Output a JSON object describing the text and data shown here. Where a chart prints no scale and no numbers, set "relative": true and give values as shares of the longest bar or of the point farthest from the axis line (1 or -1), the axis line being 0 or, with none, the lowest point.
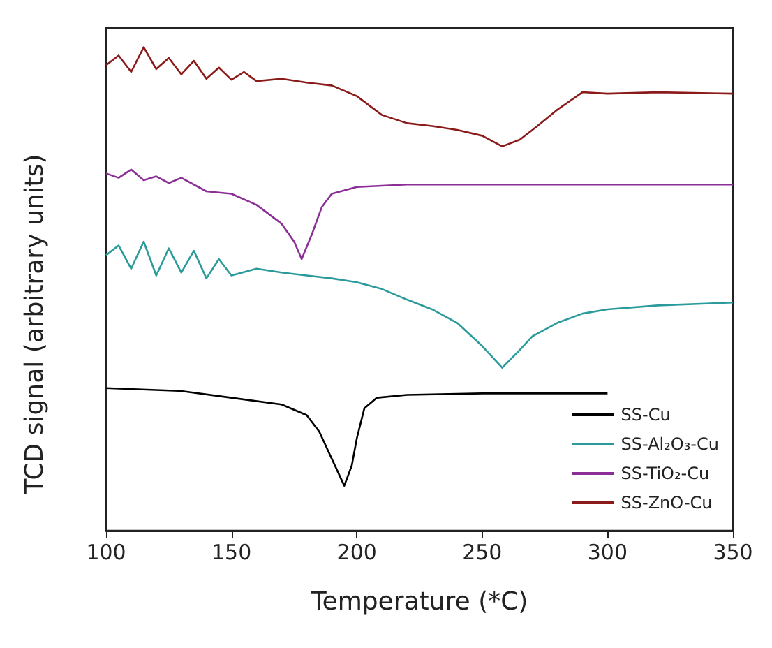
{
  "chart_data": {
    "type": "line",
    "relative": true,
    "xlabel": "Temperature (*C)",
    "ylabel": "TCD signal (arbitrary units)",
    "xlim": [
      100,
      350
    ],
    "xticks": [
      100,
      150,
      200,
      250,
      300,
      350
    ],
    "tick_labels": "x",
    "grid": false,
    "legend": "bottom right",
    "marker": "none",
    "line_style": "solid",
    "series": [
      {
        "name": "SS-Cu",
        "color": "#000000",
        "x": [
          100,
          130,
          150,
          170,
          180,
          185,
          190,
          195,
          198,
          200,
          203,
          208,
          220,
          250,
          300
        ],
        "values": [
          0.295,
          0.289,
          0.275,
          0.261,
          0.239,
          0.205,
          0.149,
          0.093,
          0.135,
          0.191,
          0.253,
          0.275,
          0.281,
          0.284,
          0.284
        ]
      },
      {
        "name": "SS-Al₂O₃-Cu",
        "color": "#2a9a9a",
        "x": [
          100,
          105,
          110,
          115,
          120,
          125,
          130,
          135,
          140,
          145,
          150,
          160,
          170,
          180,
          190,
          200,
          210,
          220,
          230,
          240,
          250,
          258,
          265,
          270,
          280,
          290,
          300,
          320,
          350
        ],
        "values": [
          0.57,
          0.59,
          0.542,
          0.598,
          0.528,
          0.584,
          0.534,
          0.579,
          0.522,
          0.562,
          0.528,
          0.542,
          0.534,
          0.528,
          0.522,
          0.514,
          0.5,
          0.478,
          0.458,
          0.43,
          0.382,
          0.337,
          0.374,
          0.402,
          0.43,
          0.449,
          0.458,
          0.466,
          0.472
        ]
      },
      {
        "name": "SS-TiO₂-Cu",
        "color": "#8b2f97",
        "x": [
          100,
          105,
          110,
          115,
          120,
          125,
          130,
          140,
          150,
          160,
          170,
          175,
          178,
          182,
          186,
          190,
          200,
          220,
          250,
          300,
          350
        ],
        "values": [
          0.739,
          0.73,
          0.747,
          0.725,
          0.733,
          0.719,
          0.73,
          0.702,
          0.697,
          0.674,
          0.635,
          0.598,
          0.562,
          0.612,
          0.669,
          0.697,
          0.711,
          0.716,
          0.716,
          0.716,
          0.716
        ]
      },
      {
        "name": "SS-ZnO-Cu",
        "color": "#8b1a1a",
        "x": [
          100,
          105,
          110,
          115,
          120,
          125,
          130,
          135,
          140,
          145,
          150,
          155,
          160,
          170,
          180,
          190,
          200,
          210,
          220,
          230,
          240,
          250,
          258,
          265,
          272,
          280,
          290,
          300,
          320,
          350
        ],
        "values": [
          0.963,
          0.983,
          0.949,
          1.0,
          0.955,
          0.978,
          0.944,
          0.972,
          0.935,
          0.958,
          0.933,
          0.949,
          0.93,
          0.935,
          0.927,
          0.921,
          0.899,
          0.86,
          0.843,
          0.837,
          0.829,
          0.817,
          0.795,
          0.809,
          0.837,
          0.871,
          0.907,
          0.904,
          0.907,
          0.904
        ]
      }
    ]
  }
}
